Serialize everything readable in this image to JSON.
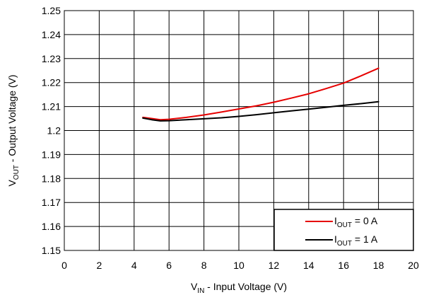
{
  "chart_data": {
    "type": "line",
    "xlabel": {
      "main": "V",
      "sub": "IN",
      "rest": " - Input Voltage (V)"
    },
    "ylabel": {
      "main": "V",
      "sub": "OUT",
      "rest": " - Output Voltage (V)"
    },
    "xlim": [
      0,
      20
    ],
    "ylim": [
      1.15,
      1.25
    ],
    "x_ticks": [
      0,
      2,
      4,
      6,
      8,
      10,
      12,
      14,
      16,
      18,
      20
    ],
    "x_tick_labels": [
      "0",
      "2",
      "4",
      "6",
      "8",
      "10",
      "12",
      "14",
      "16",
      "18",
      "20"
    ],
    "y_ticks": [
      1.15,
      1.16,
      1.17,
      1.18,
      1.19,
      1.2,
      1.21,
      1.22,
      1.23,
      1.24,
      1.25
    ],
    "y_tick_labels": [
      "1.15",
      "1.16",
      "1.17",
      "1.18",
      "1.19",
      "1.2",
      "1.21",
      "1.22",
      "1.23",
      "1.24",
      "1.25"
    ],
    "grid": true,
    "legend_position": "bottom-right",
    "series": [
      {
        "legend": {
          "main": "I",
          "sub": "OUT",
          "rest": " = 0 A"
        },
        "color": "#e60000",
        "x": [
          4.5,
          5,
          5.5,
          6,
          7,
          8,
          9,
          10,
          11,
          12,
          13,
          14,
          15,
          16,
          17,
          18
        ],
        "y": [
          1.2055,
          1.205,
          1.2045,
          1.2047,
          1.2055,
          1.2065,
          1.2077,
          1.209,
          1.2103,
          1.2118,
          1.2135,
          1.2153,
          1.2175,
          1.2198,
          1.2228,
          1.226
        ]
      },
      {
        "legend": {
          "main": "I",
          "sub": "OUT",
          "rest": " = 1 A"
        },
        "color": "#000000",
        "x": [
          4.5,
          5,
          5.5,
          6,
          7,
          8,
          9,
          10,
          11,
          12,
          13,
          14,
          15,
          16,
          17,
          18
        ],
        "y": [
          1.2052,
          1.2045,
          1.204,
          1.2041,
          1.2045,
          1.2049,
          1.2053,
          1.2059,
          1.2066,
          1.2074,
          1.2082,
          1.2089,
          1.2097,
          1.2105,
          1.2112,
          1.212
        ]
      }
    ]
  }
}
